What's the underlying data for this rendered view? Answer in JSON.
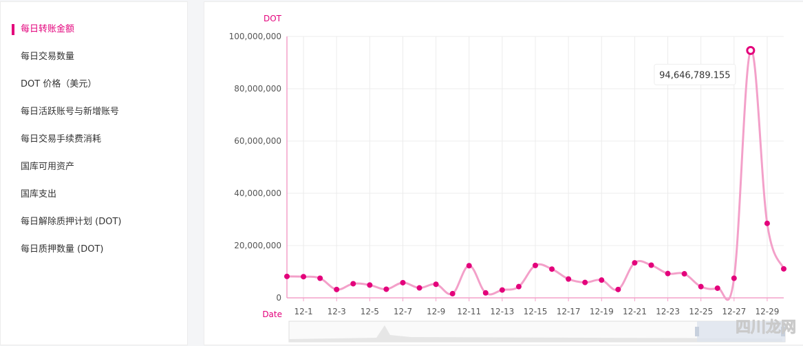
{
  "sidebar": {
    "items": [
      {
        "label": "每日转账金额",
        "active": true
      },
      {
        "label": "每日交易数量",
        "active": false
      },
      {
        "label": "DOT 价格（美元）",
        "active": false
      },
      {
        "label": "每日活跃账号与新增账号",
        "active": false
      },
      {
        "label": "每日交易手续费消耗",
        "active": false
      },
      {
        "label": "国库可用资产",
        "active": false
      },
      {
        "label": "国库支出",
        "active": false
      },
      {
        "label": "每日解除质押计划 (DOT)",
        "active": false
      },
      {
        "label": "每日质押数量 (DOT)",
        "active": false
      }
    ]
  },
  "colors": {
    "accent": "#e3007b",
    "line": "#f3a0c9",
    "point": "#e3007b"
  },
  "watermark": "四川龙网",
  "chart_data": {
    "type": "line",
    "ylabel": "DOT",
    "xlabel": "Date",
    "ylim": [
      0,
      100000000
    ],
    "yticks": [
      0,
      20000000,
      40000000,
      60000000,
      80000000,
      100000000
    ],
    "ytick_labels": [
      "0",
      "20,000,000",
      "40,000,000",
      "60,000,000",
      "80,000,000",
      "100,000,000"
    ],
    "x": [
      "11-30",
      "12-1",
      "12-2",
      "12-3",
      "12-4",
      "12-5",
      "12-6",
      "12-7",
      "12-8",
      "12-9",
      "12-10",
      "12-11",
      "12-12",
      "12-13",
      "12-14",
      "12-15",
      "12-16",
      "12-17",
      "12-18",
      "12-19",
      "12-20",
      "12-21",
      "12-22",
      "12-23",
      "12-24",
      "12-25",
      "12-26",
      "12-27",
      "12-28",
      "12-29",
      "12-30"
    ],
    "xtick_labels": [
      "12-1",
      "12-3",
      "12-5",
      "12-7",
      "12-9",
      "12-11",
      "12-13",
      "12-15",
      "12-17",
      "12-19",
      "12-21",
      "12-23",
      "12-25",
      "12-27",
      "12-29"
    ],
    "values": [
      8200000,
      8100000,
      7500000,
      3200000,
      5400000,
      4900000,
      3300000,
      5800000,
      3800000,
      5200000,
      1600000,
      12300000,
      1900000,
      3000000,
      4300000,
      12400000,
      11000000,
      7200000,
      5900000,
      6800000,
      3200000,
      13400000,
      12500000,
      9300000,
      9200000,
      4300000,
      3700000,
      7500000,
      94646789.155,
      28500000,
      11100000
    ],
    "highlight": {
      "index": 28,
      "label": "94,646,789.155"
    },
    "grid": true
  }
}
